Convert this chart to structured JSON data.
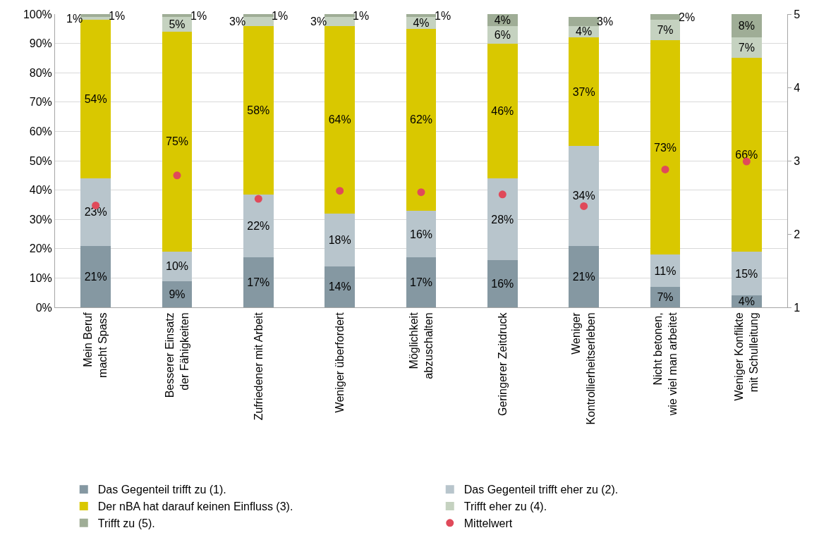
{
  "chart_data": {
    "type": "bar",
    "stacked": true,
    "categories": [
      "Mein Beruf\nmacht Spass",
      "Besserer Einsatz\nder Fähigkeiten",
      "Zufriedener mit Arbeit",
      "Weniger überfordert",
      "Möglichkeit\nabzuschalten",
      "Geringerer Zeitdruck",
      "Weniger\nKontrollierheitserleben",
      "Nicht betonen,\nwie viel man arbeitet",
      "Weniger Konflikte\nmit Schulleitung"
    ],
    "series": [
      {
        "name": "Das Gegenteil trifft zu (1).",
        "color": "#8598a2",
        "values": [
          21,
          9,
          17,
          14,
          17,
          16,
          21,
          7,
          4
        ],
        "value_labels": [
          "21%",
          "9%",
          "17%",
          "14%",
          "17%",
          "16%",
          "21%",
          "7%",
          "4%"
        ]
      },
      {
        "name": "Das Gegenteil trifft eher zu (2).",
        "color": "#b8c5cc",
        "values": [
          23,
          10,
          21.5,
          18,
          16,
          28,
          34,
          11,
          15
        ],
        "value_labels": [
          "23%",
          "10%",
          "22%",
          "18%",
          "16%",
          "28%",
          "34%",
          "11%",
          "15%"
        ]
      },
      {
        "name": "Der nBA hat darauf keinen Einfluss (3).",
        "color": "#d9c800",
        "values": [
          54,
          75,
          57.5,
          64,
          62,
          46,
          37,
          73,
          66
        ],
        "value_labels": [
          "54%",
          "75%",
          "58%",
          "64%",
          "62%",
          "46%",
          "37%",
          "73%",
          "66%"
        ]
      },
      {
        "name": "Trifft eher zu (4).",
        "color": "#c5d2c0",
        "values": [
          1,
          5,
          3,
          3,
          4,
          6,
          4,
          7,
          7
        ],
        "value_labels": [
          "1%",
          "5%",
          "3%",
          "3%",
          "4%",
          "6%",
          "4%",
          "7%",
          "7%"
        ]
      },
      {
        "name": "Trifft zu (5).",
        "color": "#9fad96",
        "values": [
          1,
          1,
          1,
          1,
          1,
          4,
          3,
          2,
          8
        ],
        "value_labels": [
          "1%",
          "1%",
          "1%",
          "1%",
          "1%",
          "4%",
          "3%",
          "2%",
          "8%"
        ]
      },
      {
        "name": "Mittelwert",
        "type": "scatter",
        "axis": "y2",
        "color": "#e04a5a",
        "values": [
          2.39,
          2.8,
          2.48,
          2.59,
          2.57,
          2.54,
          2.38,
          2.88,
          2.99
        ]
      }
    ],
    "ylim": [
      0,
      100
    ],
    "yticks": [
      {
        "value": 0,
        "label": "0%"
      },
      {
        "value": 10,
        "label": "10%"
      },
      {
        "value": 20,
        "label": "20%"
      },
      {
        "value": 30,
        "label": "30%"
      },
      {
        "value": 40,
        "label": "40%"
      },
      {
        "value": 50,
        "label": "50%"
      },
      {
        "value": 60,
        "label": "60%"
      },
      {
        "value": 70,
        "label": "70%"
      },
      {
        "value": 80,
        "label": "80%"
      },
      {
        "value": 90,
        "label": "90%"
      },
      {
        "value": 100,
        "label": "100%"
      }
    ],
    "y2lim": [
      1,
      5
    ],
    "y2ticks": [
      1,
      2,
      3,
      4,
      5
    ],
    "grid": "y",
    "legend": "bottom",
    "marker": "circle"
  }
}
